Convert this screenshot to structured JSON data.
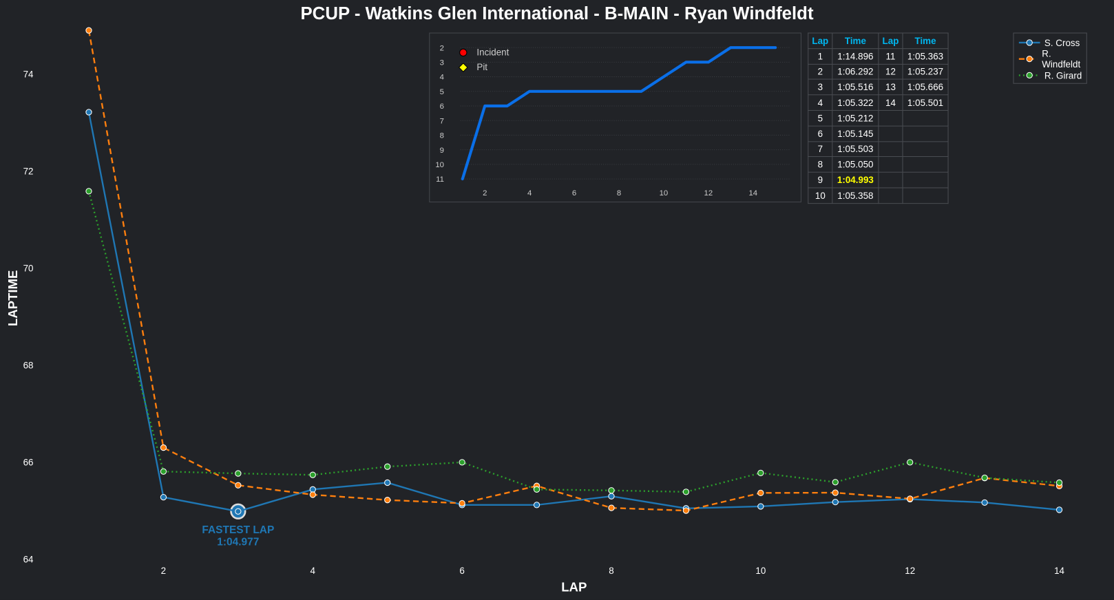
{
  "title": "PCUP - Watkins Glen International - B-MAIN - Ryan Windfeldt",
  "chart_data": [
    {
      "type": "line",
      "title": "PCUP - Watkins Glen International - B-MAIN - Ryan Windfeldt",
      "xlabel": "LAP",
      "ylabel": "LAPTIME",
      "x": [
        1,
        2,
        3,
        4,
        5,
        6,
        7,
        8,
        9,
        10,
        11,
        12,
        13,
        14
      ],
      "xticks": [
        2,
        4,
        6,
        8,
        10,
        12,
        14
      ],
      "yticks": [
        64,
        66,
        68,
        70,
        72,
        74
      ],
      "ylim": [
        64,
        75
      ],
      "xlim": [
        1,
        14
      ],
      "legend_position": "top-right",
      "series": [
        {
          "name": "S. Cross",
          "color": "#1f77b4",
          "style": "solid",
          "values": [
            73.21,
            65.27,
            64.977,
            65.43,
            65.57,
            65.11,
            65.11,
            65.29,
            65.04,
            65.08,
            65.17,
            65.23,
            65.16,
            65.01
          ]
        },
        {
          "name": "R. Windfeldt",
          "color": "#ff7f0e",
          "style": "dashed",
          "values": [
            74.896,
            66.292,
            65.516,
            65.322,
            65.212,
            65.145,
            65.503,
            65.05,
            64.993,
            65.358,
            65.363,
            65.237,
            65.666,
            65.501
          ]
        },
        {
          "name": "R. Girard",
          "color": "#2ca02c",
          "style": "dotted",
          "values": [
            71.58,
            65.8,
            65.76,
            65.73,
            65.9,
            65.99,
            65.43,
            65.41,
            65.38,
            65.77,
            65.58,
            65.99,
            65.67,
            65.57
          ]
        }
      ],
      "annotation": {
        "label": "FASTEST LAP",
        "value": "1:04.977",
        "lap": 3,
        "laptime": 64.977
      }
    },
    {
      "type": "line",
      "title": "Position",
      "x": [
        1,
        2,
        3,
        4,
        5,
        6,
        7,
        8,
        9,
        10,
        11,
        12,
        13,
        14,
        15
      ],
      "values": [
        11,
        6,
        6,
        5,
        5,
        5,
        5,
        5,
        5,
        4,
        3,
        3,
        2,
        2,
        2
      ],
      "ylim": [
        11,
        2
      ],
      "yticks": [
        2,
        3,
        4,
        5,
        6,
        7,
        8,
        9,
        10,
        11
      ],
      "xticks": [
        2,
        4,
        6,
        8,
        10,
        12,
        14
      ],
      "color": "#0a6fe8",
      "legend": [
        {
          "label": "Incident",
          "marker": "circle",
          "color": "#ff0000"
        },
        {
          "label": "Pit",
          "marker": "diamond",
          "color": "#ffff00"
        }
      ]
    }
  ],
  "table": {
    "headers": [
      "Lap",
      "Time",
      "Lap",
      "Time"
    ],
    "rows": [
      [
        "1",
        "1:14.896",
        "11",
        "1:05.363"
      ],
      [
        "2",
        "1:06.292",
        "12",
        "1:05.237"
      ],
      [
        "3",
        "1:05.516",
        "13",
        "1:05.666"
      ],
      [
        "4",
        "1:05.322",
        "14",
        "1:05.501"
      ],
      [
        "5",
        "1:05.212",
        "",
        ""
      ],
      [
        "6",
        "1:05.145",
        "",
        ""
      ],
      [
        "7",
        "1:05.503",
        "",
        ""
      ],
      [
        "8",
        "1:05.050",
        "",
        ""
      ],
      [
        "9",
        "1:04.993",
        "",
        ""
      ],
      [
        "10",
        "1:05.358",
        "",
        ""
      ]
    ],
    "highlight": {
      "row": 8,
      "col": 1,
      "color": "#ffff00"
    }
  }
}
